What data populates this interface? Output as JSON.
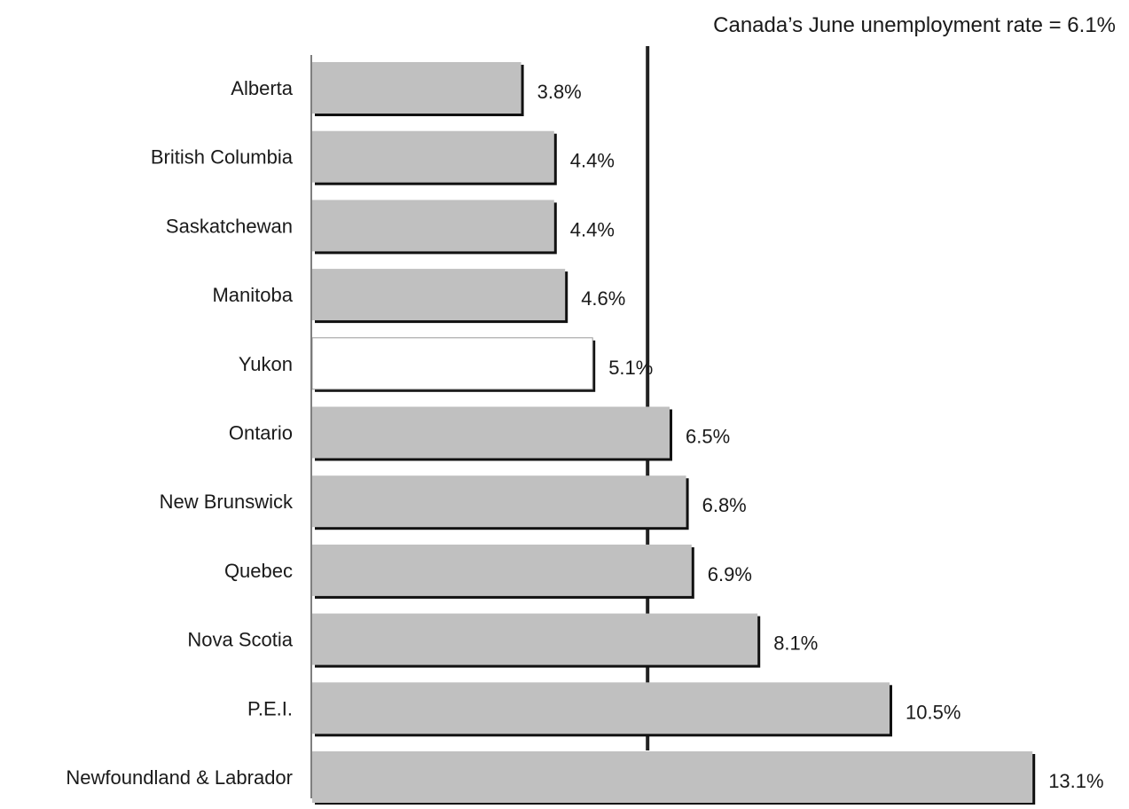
{
  "chart_data": {
    "type": "bar",
    "orientation": "horizontal",
    "categories": [
      "Alberta",
      "British Columbia",
      "Saskatchewan",
      "Manitoba",
      "Yukon",
      "Ontario",
      "New Brunswick",
      "Quebec",
      "Nova Scotia",
      "P.E.I.",
      "Newfoundland & Labrador"
    ],
    "values": [
      3.8,
      4.4,
      4.4,
      4.6,
      5.1,
      6.5,
      6.8,
      6.9,
      8.1,
      10.5,
      13.1
    ],
    "value_labels": [
      "3.8%",
      "4.4%",
      "4.4%",
      "4.6%",
      "5.1%",
      "6.5%",
      "6.8%",
      "6.9%",
      "8.1%",
      "10.5%",
      "13.1%"
    ],
    "highlight_category": "Yukon",
    "reference_line": {
      "value": 6.1,
      "label": "Canada’s June unemployment rate = 6.1%"
    },
    "xlim": [
      0,
      13.1
    ],
    "grid": false,
    "legend": "none",
    "colors": {
      "bar": "#c0c0c0",
      "highlight_bar": "#ffffff",
      "bar_shadow": "#111111",
      "reference_line": "#222222",
      "axis": "#555555"
    }
  }
}
